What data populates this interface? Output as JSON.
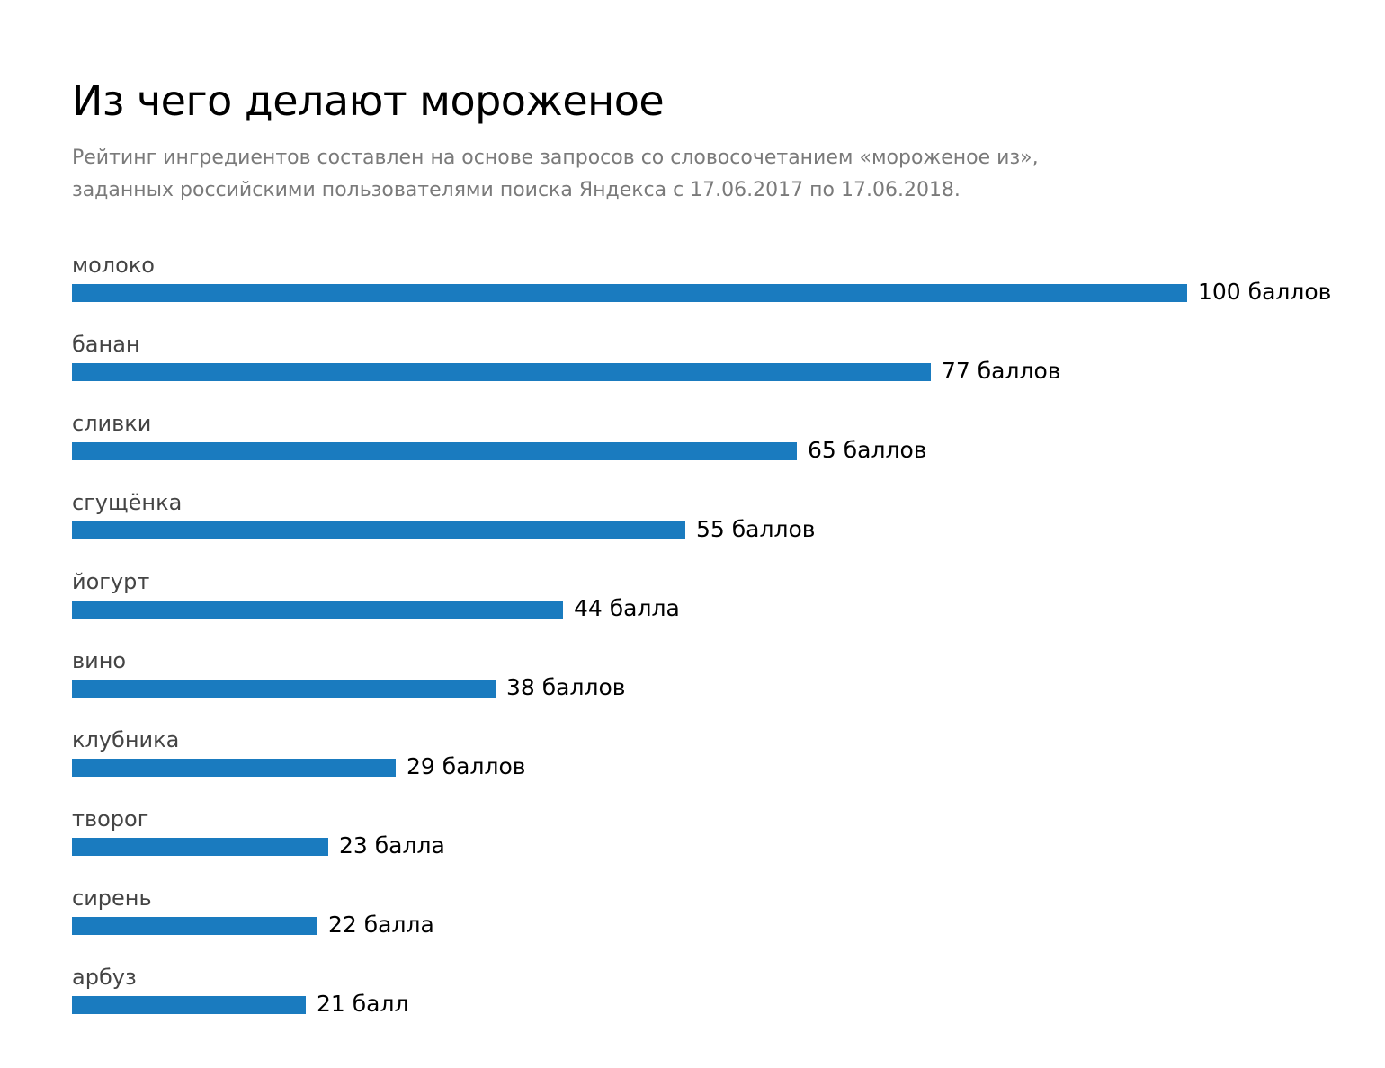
{
  "title": "Из чего делают мороженое",
  "subtitle_lines": [
    "Рейтинг ингредиентов составлен на основе запросов со словосочетанием «мороженое из»,",
    "заданных российскими пользователями поиска Яндекса с 17.06.2017 по 17.06.2018."
  ],
  "colors": {
    "bar": "#1a7bbf",
    "title": "#000000",
    "subtitle": "#7a7a7a",
    "category": "#444444",
    "value": "#000000"
  },
  "chart_data": {
    "type": "bar",
    "orientation": "horizontal",
    "title": "Из чего делают мороженое",
    "categories": [
      "молоко",
      "банан",
      "сливки",
      "сгущёнка",
      "йогурт",
      "вино",
      "клубника",
      "творог",
      "сирень",
      "арбуз"
    ],
    "values": [
      100,
      77,
      65,
      55,
      44,
      38,
      29,
      23,
      22,
      21
    ],
    "value_labels": [
      "100 баллов",
      "77 баллов",
      "65 баллов",
      "55 баллов",
      "44 балла",
      "38 баллов",
      "29 баллов",
      "23 балла",
      "22 балла",
      "21 балл"
    ],
    "xlim": [
      0,
      100
    ],
    "grid": false,
    "legend": "none"
  }
}
